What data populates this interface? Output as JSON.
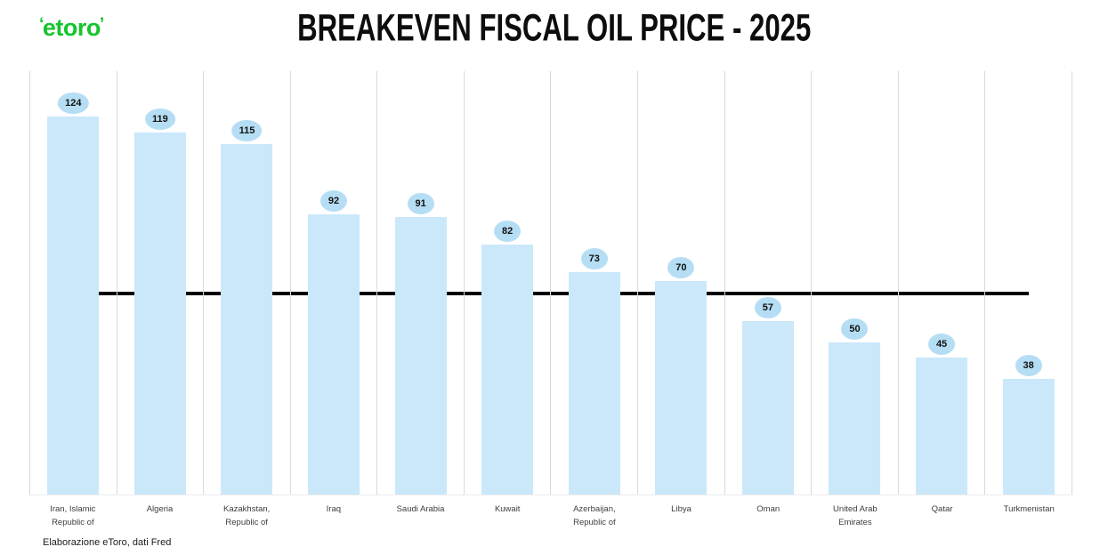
{
  "header": {
    "logo_text": "etoro",
    "title": "BREAKEVEN FISCAL OIL PRICE - 2025"
  },
  "footer": {
    "source": "Elaborazione eToro, dati Fred"
  },
  "chart_data": {
    "type": "bar",
    "title": "BREAKEVEN FISCAL OIL PRICE - 2025",
    "categories": [
      "Iran, Islamic Republic of",
      "Algeria",
      "Kazakhstan, Republic of",
      "Iraq",
      "Saudi Arabia",
      "Kuwait",
      "Azerbaijan, Republic of",
      "Libya",
      "Oman",
      "United Arab Emirates",
      "Qatar",
      "Turkmenistan"
    ],
    "values": [
      124,
      119,
      115,
      92,
      91,
      82,
      73,
      70,
      57,
      50,
      45,
      38
    ],
    "xlabel": "",
    "ylabel": "",
    "ylim": [
      0,
      139
    ],
    "y_axis_visible": false,
    "grid": "vertical category separators only",
    "legend": "none",
    "data_labels": "value in ellipse bubble above each bar",
    "reference_line": {
      "value": 66,
      "note": "unlabeled horizontal black line spanning from first to last bar center"
    },
    "colors": {
      "bar": "#cae8fa",
      "bubble": "#b5def4",
      "gridline": "#d9d9d9",
      "reference_line": "#000000",
      "logo_green": "#14C52D"
    }
  }
}
